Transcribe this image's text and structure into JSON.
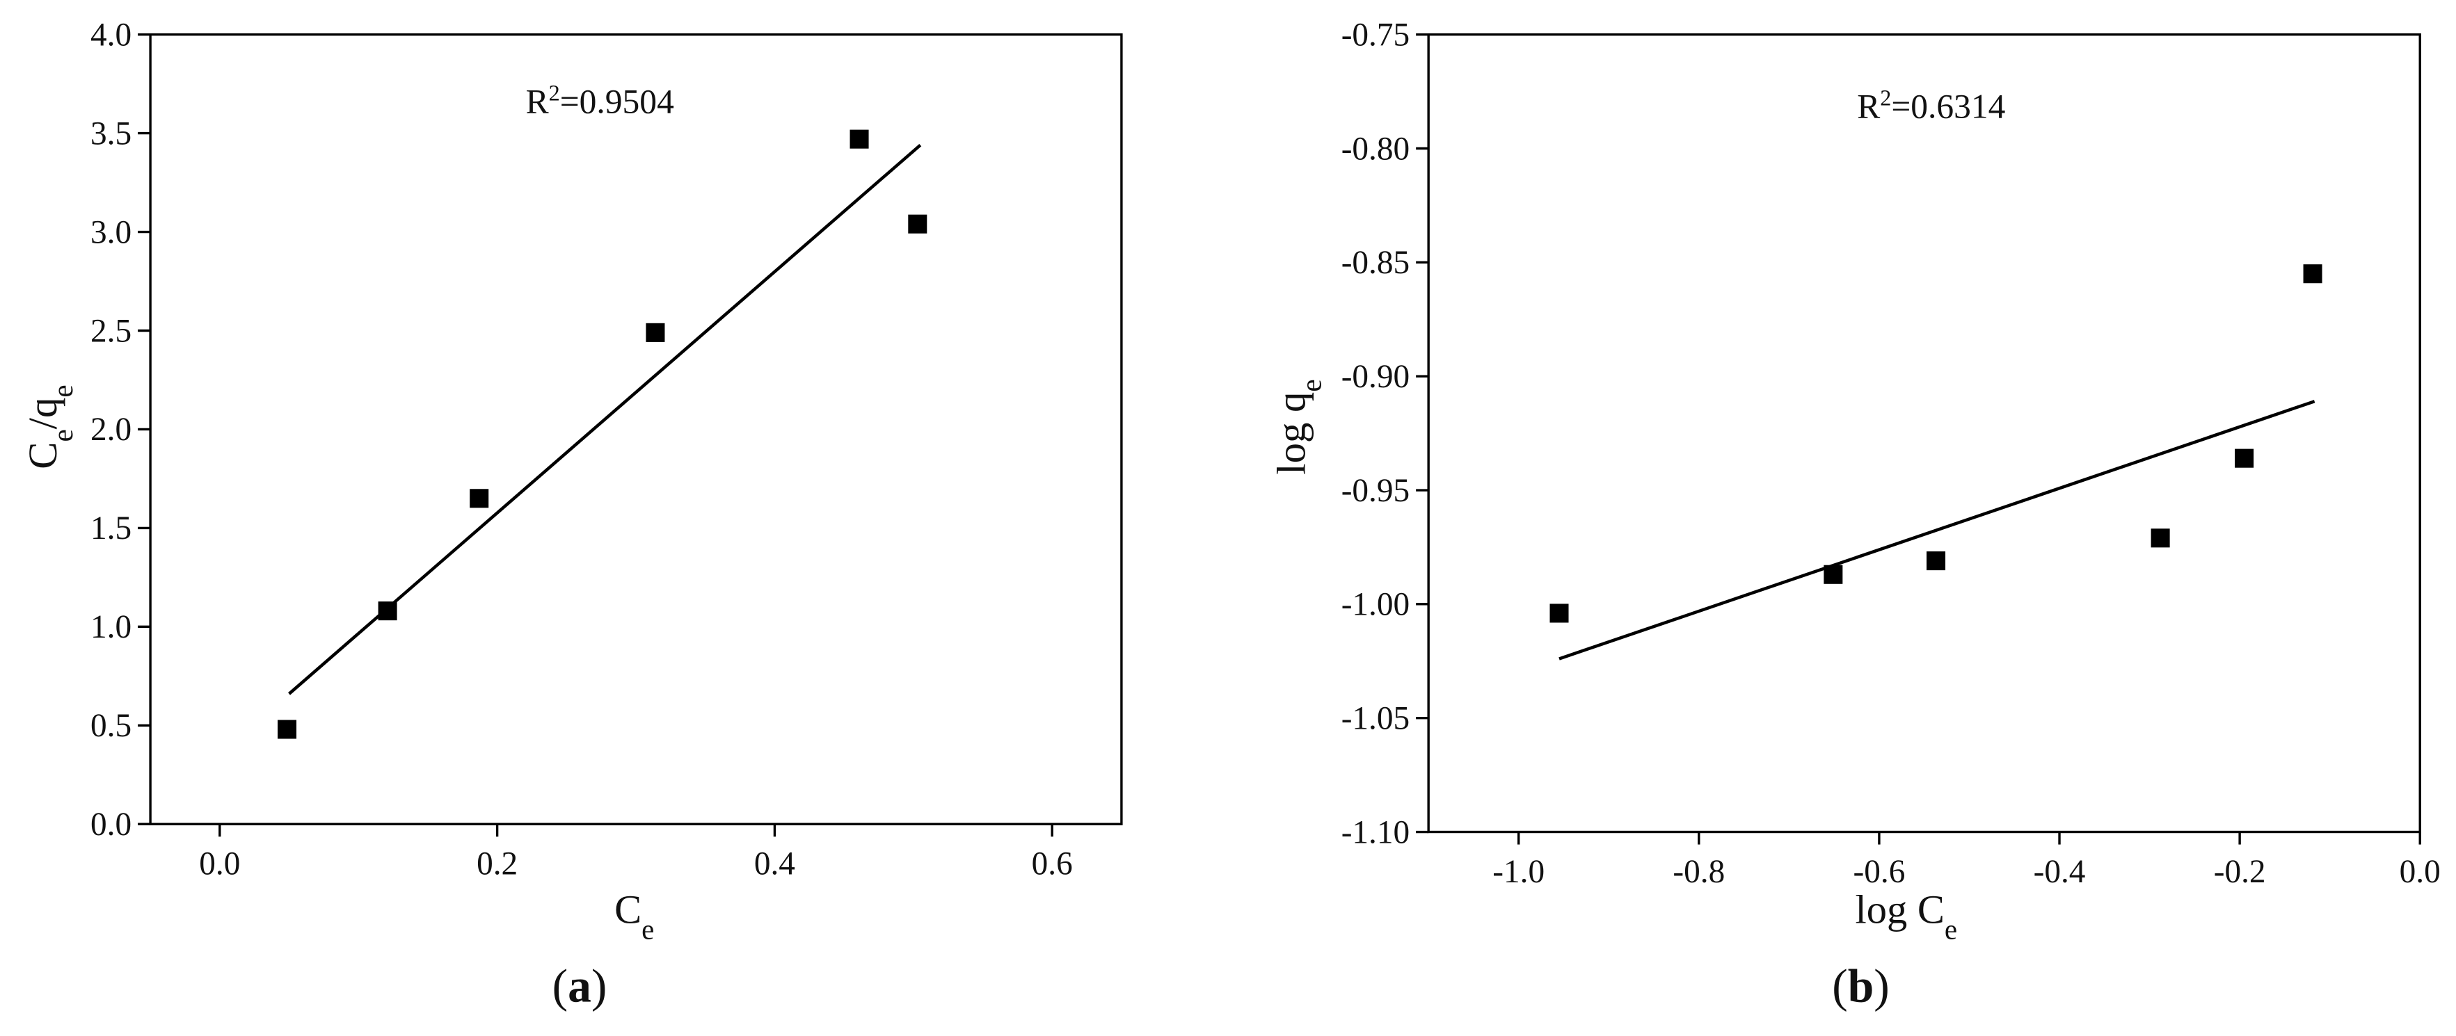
{
  "chart_data": [
    {
      "type": "scatter",
      "color": "#000000",
      "x": [
        0.0485,
        0.121,
        0.187,
        0.314,
        0.461,
        0.503
      ],
      "values": [
        0.48,
        1.08,
        1.65,
        2.49,
        3.47,
        3.04
      ],
      "fit": {
        "x": [
          0.05,
          0.505
        ],
        "values": [
          0.66,
          3.44
        ]
      },
      "xlim": [
        -0.05,
        0.65
      ],
      "ylim": [
        0,
        4
      ],
      "xticks": [
        {
          "value": 0,
          "label": "0.0"
        },
        {
          "value": 0.2,
          "label": "0.2"
        },
        {
          "value": 0.4,
          "label": "0.4"
        },
        {
          "value": 0.6,
          "label": "0.6"
        }
      ],
      "yticks": [
        {
          "value": 0,
          "label": "0.0"
        },
        {
          "value": 0.5,
          "label": "0.5"
        },
        {
          "value": 1,
          "label": "1.0"
        },
        {
          "value": 1.5,
          "label": "1.5"
        },
        {
          "value": 2,
          "label": "2.0"
        },
        {
          "value": 2.5,
          "label": "2.5"
        },
        {
          "value": 3,
          "label": "3.0"
        },
        {
          "value": 3.5,
          "label": "3.5"
        },
        {
          "value": 4,
          "label": "4.0"
        }
      ],
      "xlabel": [
        "C",
        "e"
      ],
      "ylabel": [
        "C",
        "e",
        "/q",
        "e"
      ],
      "annotation": [
        "R",
        "2",
        "=0.9504"
      ],
      "panel_label": [
        "(",
        "a",
        ")"
      ]
    },
    {
      "type": "scatter",
      "color": "#000000",
      "x": [
        -0.955,
        -0.651,
        -0.537,
        -0.288,
        -0.195,
        -0.119
      ],
      "values": [
        -1.004,
        -0.987,
        -0.981,
        -0.971,
        -0.936,
        -0.855
      ],
      "fit": {
        "x": [
          -0.955,
          -0.117
        ],
        "values": [
          -1.024,
          -0.911
        ]
      },
      "xlim": [
        -1.1,
        0
      ],
      "ylim": [
        -1.1,
        -0.75
      ],
      "xticks": [
        {
          "value": -1,
          "label": "-1.0"
        },
        {
          "value": -0.8,
          "label": "-0.8"
        },
        {
          "value": -0.6,
          "label": "-0.6"
        },
        {
          "value": -0.4,
          "label": "-0.4"
        },
        {
          "value": -0.2,
          "label": "-0.2"
        },
        {
          "value": 0,
          "label": "0.0"
        }
      ],
      "yticks": [
        {
          "value": -1.1,
          "label": "-1.10"
        },
        {
          "value": -1.05,
          "label": "-1.05"
        },
        {
          "value": -1,
          "label": "-1.00"
        },
        {
          "value": -0.95,
          "label": "-0.95"
        },
        {
          "value": -0.9,
          "label": "-0.90"
        },
        {
          "value": -0.85,
          "label": "-0.85"
        },
        {
          "value": -0.8,
          "label": "-0.80"
        },
        {
          "value": -0.75,
          "label": "-0.75"
        }
      ],
      "xlabel": [
        "log C",
        "e"
      ],
      "ylabel": [
        "log q",
        "e"
      ],
      "annotation": [
        "R",
        "2",
        "=0.6314"
      ],
      "panel_label": [
        "(",
        "b",
        ")"
      ]
    }
  ]
}
